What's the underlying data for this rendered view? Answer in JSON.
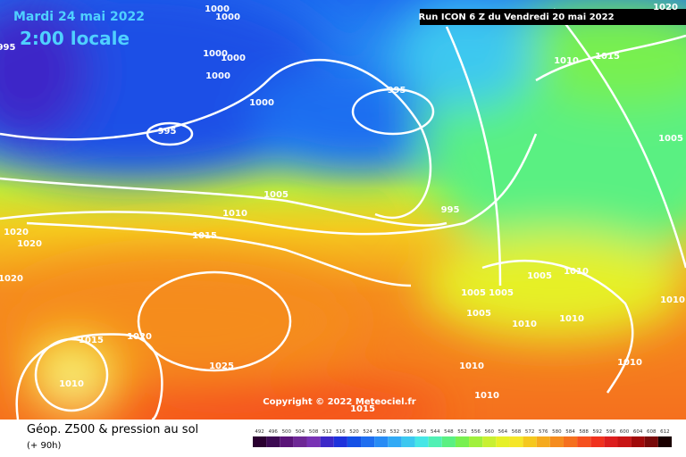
{
  "header": {
    "date": "Mardi 24 mai 2022",
    "time": "2:00 locale",
    "run": "Run ICON 6 Z du Vendredi 20 mai 2022"
  },
  "copyright": "Copyright © 2022 Meteociel.fr",
  "legend": {
    "title": "Géop. Z500 & pression au sol",
    "lead": "(+ 90h)",
    "values": [
      492,
      496,
      500,
      504,
      508,
      512,
      516,
      520,
      524,
      528,
      532,
      536,
      540,
      544,
      548,
      552,
      556,
      560,
      564,
      568,
      572,
      576,
      580,
      584,
      588,
      592,
      596,
      600,
      604,
      608,
      612
    ],
    "colors": [
      "#2a0030",
      "#3c0a52",
      "#5a1478",
      "#6e2896",
      "#7832b4",
      "#3c28c8",
      "#1e32dc",
      "#1450e6",
      "#1e6ef0",
      "#288cf5",
      "#32aaf5",
      "#3cc8f0",
      "#46e6e6",
      "#50f0b4",
      "#5af082",
      "#78f050",
      "#a0f03c",
      "#c8f032",
      "#e6f028",
      "#f5e628",
      "#f5c81e",
      "#f5aa1e",
      "#f58c1e",
      "#f5701e",
      "#f5501e",
      "#f0321e",
      "#dc1e1e",
      "#c81414",
      "#a00a0a",
      "#780a0a",
      "#1a0000"
    ]
  },
  "isobar_labels": [
    "1000",
    "1000",
    "995",
    "1000",
    "1000",
    "1000",
    "1010",
    "1015",
    "1020",
    "995",
    "1000",
    "995",
    "1005",
    "1005",
    "1010",
    "995",
    "1015",
    "1020",
    "1020",
    "1020",
    "1005",
    "1010",
    "1010",
    "1005",
    "1005",
    "1005",
    "1010",
    "1010",
    "1015",
    "1020",
    "1025",
    "1010",
    "1010",
    "1010",
    "1010",
    "1015"
  ]
}
